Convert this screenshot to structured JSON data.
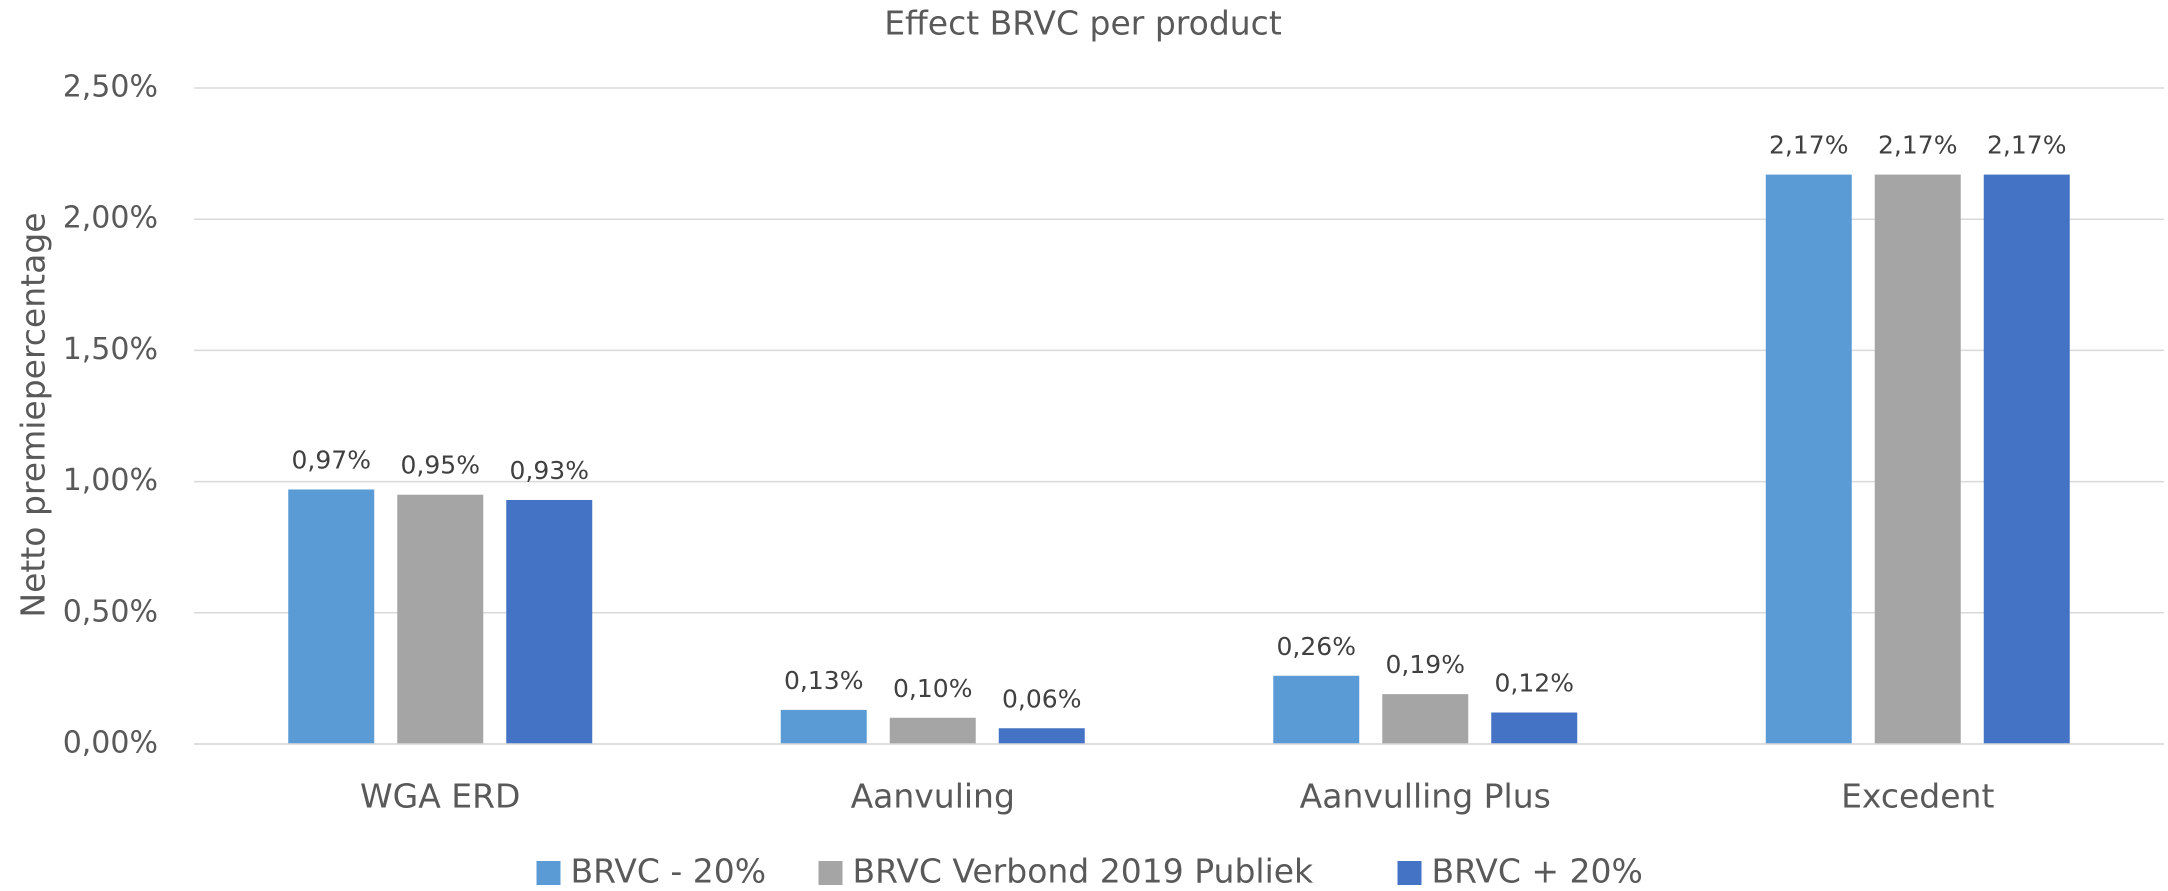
{
  "chart_data": {
    "type": "bar",
    "title": "Effect BRVC per product",
    "y_label": "Netto premiepercentage",
    "categories": [
      "WGA ERD",
      "Aanvuling",
      "Aanvulling Plus",
      "Excedent"
    ],
    "series": [
      {
        "name": "BRVC - 20%",
        "color": "#5b9bd5",
        "values": [
          0.97,
          0.13,
          0.26,
          2.17
        ],
        "value_labels": [
          "0,97%",
          "0,13%",
          "0,26%",
          "2,17%"
        ]
      },
      {
        "name": "BRVC Verbond 2019 Publiek",
        "color": "#a5a5a5",
        "values": [
          0.95,
          0.1,
          0.19,
          2.17
        ],
        "value_labels": [
          "0,95%",
          "0,10%",
          "0,19%",
          "2,17%"
        ]
      },
      {
        "name": "BRVC + 20%",
        "color": "#4472c4",
        "values": [
          0.93,
          0.06,
          0.12,
          2.17
        ],
        "value_labels": [
          "0,93%",
          "0,06%",
          "0,12%",
          "2,17%"
        ]
      }
    ],
    "ylim": [
      0,
      2.5
    ],
    "yticks": [
      {
        "value": 0,
        "label": "0,00%"
      },
      {
        "value": 0.5,
        "label": "0,50%"
      },
      {
        "value": 1,
        "label": "1,00%"
      },
      {
        "value": 1.5,
        "label": "1,50%"
      },
      {
        "value": 2,
        "label": "2,00%"
      },
      {
        "value": 2.5,
        "label": "2,50%"
      }
    ],
    "grid": true,
    "legend": "bottom"
  }
}
